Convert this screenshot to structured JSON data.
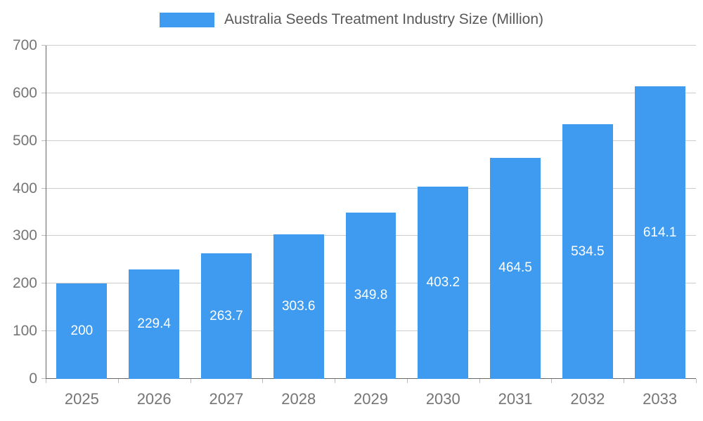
{
  "chart_data": {
    "type": "bar",
    "title": "Australia Seeds Treatment Industry Size (Million)",
    "categories": [
      "2025",
      "2026",
      "2027",
      "2028",
      "2029",
      "2030",
      "2031",
      "2032",
      "2033"
    ],
    "values": [
      200,
      229.4,
      263.7,
      303.6,
      349.8,
      403.2,
      464.5,
      534.5,
      614.1
    ],
    "value_labels": [
      "200",
      "229.4",
      "263.7",
      "303.6",
      "349.8",
      "403.2",
      "464.5",
      "534.5",
      "614.1"
    ],
    "xlabel": "",
    "ylabel": "",
    "ylim": [
      0,
      700
    ],
    "y_ticks": [
      0,
      100,
      200,
      300,
      400,
      500,
      600,
      700
    ],
    "grid": true,
    "legend_position": "top",
    "colors": {
      "bar": "#3E9BF0",
      "value_label": "#ffffff",
      "gridline": "#cccccc",
      "axis": "#666666",
      "tick_label": "#757575",
      "title": "#595959"
    }
  }
}
